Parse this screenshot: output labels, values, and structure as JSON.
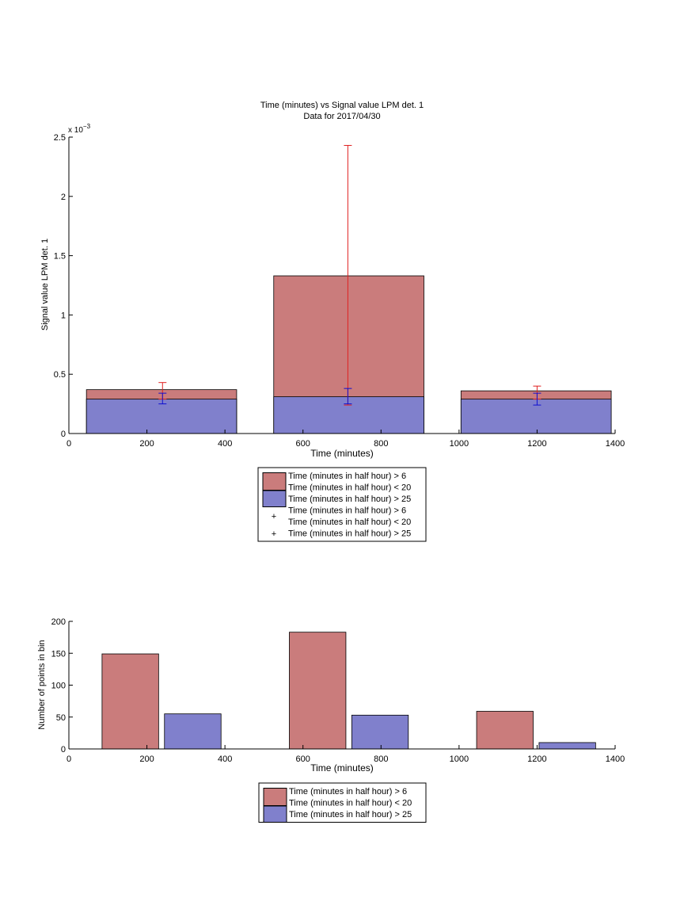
{
  "colors": {
    "red_fill": "#ca7c7c",
    "blue_fill": "#8080cc",
    "red_err": "#e02020",
    "blue_err": "#1010d0"
  },
  "chart_data": [
    {
      "type": "bar",
      "title": "Time (minutes) vs Signal value LPM det. 1",
      "subtitle": "Data for 2017/04/30",
      "xlabel": "Time (minutes)",
      "ylabel": "Signal value LPM det. 1",
      "y_exponent": "x 10",
      "y_exponent_power": "−3",
      "xlim": [
        0,
        1400
      ],
      "ylim": [
        0,
        2.5
      ],
      "xticks": [
        0,
        200,
        400,
        600,
        800,
        1000,
        1200,
        1400
      ],
      "yticks": [
        0,
        0.5,
        1,
        1.5,
        2,
        2.5
      ],
      "x_tick_labels": [
        "0",
        "200",
        "400",
        "600",
        "800",
        "1000",
        "1200",
        "1400"
      ],
      "y_tick_labels": [
        "0",
        "0.5",
        "1",
        "1.5",
        "2",
        "2.5"
      ],
      "bins": [
        {
          "x_start": 45,
          "x_end": 430,
          "top": 0.37,
          "bottom": 0.29
        },
        {
          "x_start": 525,
          "x_end": 910,
          "top": 1.33,
          "bottom": 0.31
        },
        {
          "x_start": 1005,
          "x_end": 1390,
          "top": 0.36,
          "bottom": 0.29
        }
      ],
      "error_bars": [
        {
          "series": "red",
          "x": 240,
          "low": 0.29,
          "high": 0.43
        },
        {
          "series": "red",
          "x": 715,
          "low": 0.24,
          "high": 2.43
        },
        {
          "series": "red",
          "x": 1200,
          "low": 0.29,
          "high": 0.4
        },
        {
          "series": "blue",
          "x": 240,
          "low": 0.25,
          "high": 0.34
        },
        {
          "series": "blue",
          "x": 715,
          "low": 0.25,
          "high": 0.38
        },
        {
          "series": "blue",
          "x": 1200,
          "low": 0.24,
          "high": 0.34
        }
      ],
      "legend_placement": "below",
      "legend": [
        {
          "kind": "patch",
          "color": "red",
          "lines": [
            "Time (minutes in half hour) > 6",
            "Time (minutes in half hour) < 20"
          ]
        },
        {
          "kind": "patch",
          "color": "blue",
          "lines": [
            "Time (minutes in half hour) > 25"
          ]
        },
        {
          "kind": "plus",
          "color": "red",
          "lines": [
            "Time (minutes in half hour) > 6",
            "Time (minutes in half hour) < 20"
          ]
        },
        {
          "kind": "plus",
          "color": "blue",
          "lines": [
            "Time (minutes in half hour) > 25"
          ]
        }
      ]
    },
    {
      "type": "bar",
      "xlabel": "Time (minutes)",
      "ylabel": "Number of points in bin",
      "xlim": [
        0,
        1400
      ],
      "ylim": [
        0,
        200
      ],
      "xticks": [
        0,
        200,
        400,
        600,
        800,
        1000,
        1200,
        1400
      ],
      "yticks": [
        0,
        50,
        100,
        150,
        200
      ],
      "x_tick_labels": [
        "0",
        "200",
        "400",
        "600",
        "800",
        "1000",
        "1200",
        "1400"
      ],
      "y_tick_labels": [
        "0",
        "50",
        "100",
        "150",
        "200"
      ],
      "bars": [
        {
          "series": "red",
          "x_start": 85,
          "x_end": 230,
          "value": 149
        },
        {
          "series": "blue",
          "x_start": 245,
          "x_end": 390,
          "value": 55
        },
        {
          "series": "red",
          "x_start": 565,
          "x_end": 710,
          "value": 183
        },
        {
          "series": "blue",
          "x_start": 725,
          "x_end": 870,
          "value": 53
        },
        {
          "series": "red",
          "x_start": 1045,
          "x_end": 1190,
          "value": 59
        },
        {
          "series": "blue",
          "x_start": 1205,
          "x_end": 1350,
          "value": 10
        }
      ],
      "legend_placement": "below",
      "legend": [
        {
          "kind": "patch",
          "color": "red",
          "lines": [
            "Time (minutes in half hour) > 6",
            "Time (minutes in half hour) < 20"
          ]
        },
        {
          "kind": "patch",
          "color": "blue",
          "lines": [
            "Time (minutes in half hour) > 25"
          ]
        }
      ]
    }
  ]
}
